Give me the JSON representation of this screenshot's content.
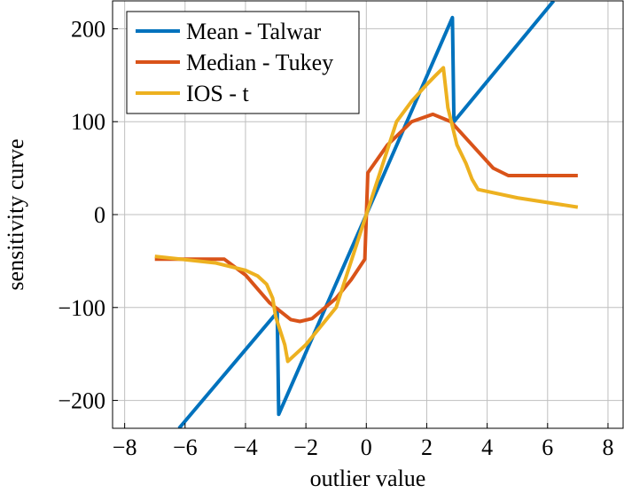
{
  "chart_data": {
    "type": "line",
    "xlabel": "outlier value",
    "ylabel": "sensitivity curve",
    "xlim": [
      -8.4,
      8.5
    ],
    "ylim": [
      -230,
      230
    ],
    "xticks": [
      {
        "value": -8,
        "label": "−8"
      },
      {
        "value": -6,
        "label": "−6"
      },
      {
        "value": -4,
        "label": "−4"
      },
      {
        "value": -2,
        "label": "−2"
      },
      0,
      2,
      4,
      6,
      8
    ],
    "yticks": [
      {
        "value": -200,
        "label": "−200"
      },
      {
        "value": -100,
        "label": "−100"
      },
      0,
      100,
      200
    ],
    "grid": true,
    "legend": "upper left",
    "series": [
      {
        "name": "Mean - Talwar",
        "color": "#0072bd",
        "x": [
          -6.2,
          -2.95,
          -2.9,
          0,
          2.85,
          2.9,
          6.2
        ],
        "values": [
          -230,
          -105,
          -215,
          0,
          212,
          100,
          230
        ]
      },
      {
        "name": "Median - Tukey",
        "color": "#d95319",
        "x": [
          -7,
          -4.7,
          -4,
          -3.2,
          -2.5,
          -2.2,
          -1.8,
          -1,
          -0.5,
          -0.05,
          0.05,
          0.7,
          1.5,
          2.2,
          2.8,
          3.5,
          4.2,
          4.7,
          7
        ],
        "values": [
          -48,
          -48,
          -65,
          -95,
          -113,
          -115,
          -112,
          -90,
          -70,
          -48,
          45,
          75,
          100,
          108,
          100,
          75,
          50,
          42,
          42
        ]
      },
      {
        "name": "IOS - t",
        "color": "#edb120",
        "x": [
          -7,
          -5,
          -4,
          -3.6,
          -3.3,
          -3.1,
          -3,
          -2.7,
          -2.6,
          -2,
          -1,
          0,
          1,
          1.5,
          2,
          2.3,
          2.55,
          2.7,
          3,
          3.3,
          3.5,
          3.7,
          5,
          7
        ],
        "values": [
          -45,
          -52,
          -60,
          -66,
          -75,
          -90,
          -110,
          -140,
          -158,
          -140,
          -100,
          0,
          100,
          122,
          140,
          150,
          158,
          115,
          75,
          55,
          38,
          27,
          18,
          8
        ]
      }
    ]
  }
}
